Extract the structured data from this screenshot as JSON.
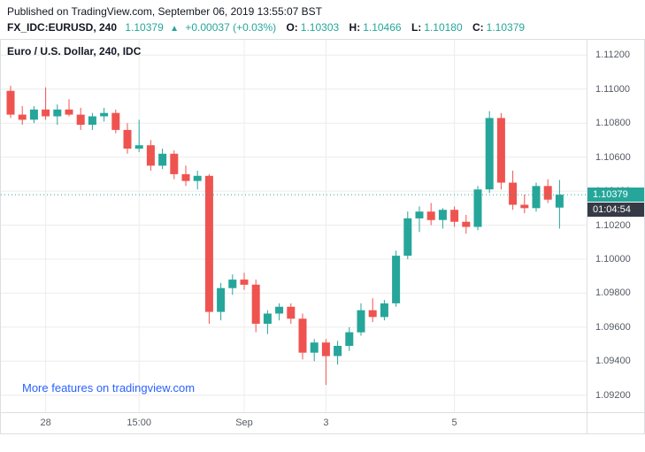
{
  "header": {
    "published_line": "Published on TradingView.com, September 06, 2019 13:55:07 BST",
    "symbol_interval": "FX_IDC:EURUSD, 240",
    "last_price": "1.10379",
    "change_arrow": "▲",
    "change_text": "+0.00037 (+0.03%)",
    "ohlc": [
      {
        "label": "O:",
        "value": "1.10303"
      },
      {
        "label": "H:",
        "value": "1.10466"
      },
      {
        "label": "L:",
        "value": "1.10180"
      },
      {
        "label": "C:",
        "value": "1.10379"
      }
    ]
  },
  "chart": {
    "pane_title": "Euro / U.S. Dollar, 240, IDC",
    "promo_link": "More features on tradingview.com",
    "price_badge": "1.10379",
    "countdown_badge": "01:04:54"
  },
  "colors": {
    "up": "#26a69a",
    "down": "#ef5350",
    "link": "#2962ff",
    "countdown_bg": "#363a45",
    "grid": "#ececec",
    "axis_text": "#555a64",
    "border": "#dcdee1"
  },
  "chart_data": {
    "type": "candlestick",
    "title": "Euro / U.S. Dollar, 240, IDC",
    "symbol": "FX_IDC:EURUSD",
    "interval": "240",
    "last_price": 1.10379,
    "ylim": [
      1.091,
      1.1129
    ],
    "y_ticks": [
      "1.11200",
      "1.11000",
      "1.10800",
      "1.10600",
      "1.10400",
      "1.10200",
      "1.10000",
      "1.09800",
      "1.09600",
      "1.09400",
      "1.09200"
    ],
    "x_ticks": [
      {
        "label": "28",
        "index": 3
      },
      {
        "label": "15:00",
        "index": 11
      },
      {
        "label": "Sep",
        "index": 20
      },
      {
        "label": "3",
        "index": 27
      },
      {
        "label": "5",
        "index": 38
      }
    ],
    "candles_ohlc": [
      [
        1.1099,
        1.1102,
        1.1083,
        1.1085
      ],
      [
        1.1085,
        1.109,
        1.1079,
        1.1082
      ],
      [
        1.1082,
        1.109,
        1.108,
        1.1088
      ],
      [
        1.1088,
        1.1101,
        1.1082,
        1.1084
      ],
      [
        1.1084,
        1.1091,
        1.1079,
        1.1088
      ],
      [
        1.1088,
        1.1094,
        1.1084,
        1.1085
      ],
      [
        1.1085,
        1.1089,
        1.1076,
        1.1079
      ],
      [
        1.1079,
        1.1086,
        1.1076,
        1.1084
      ],
      [
        1.1084,
        1.1089,
        1.1081,
        1.1086
      ],
      [
        1.1086,
        1.1088,
        1.1074,
        1.1076
      ],
      [
        1.1076,
        1.108,
        1.1062,
        1.1065
      ],
      [
        1.1065,
        1.1082,
        1.1063,
        1.1067
      ],
      [
        1.1067,
        1.107,
        1.1052,
        1.1055
      ],
      [
        1.1055,
        1.1065,
        1.1053,
        1.1062
      ],
      [
        1.1062,
        1.1064,
        1.1047,
        1.105
      ],
      [
        1.105,
        1.1055,
        1.1043,
        1.1046
      ],
      [
        1.1046,
        1.1052,
        1.1041,
        1.1049
      ],
      [
        1.1049,
        1.105,
        1.0962,
        1.0969
      ],
      [
        1.0969,
        1.0986,
        1.0964,
        1.0983
      ],
      [
        1.0983,
        1.0991,
        1.0979,
        1.0988
      ],
      [
        1.0988,
        1.0992,
        1.0982,
        1.0985
      ],
      [
        1.0985,
        1.0988,
        1.0957,
        1.0962
      ],
      [
        1.0962,
        1.097,
        1.0956,
        1.0968
      ],
      [
        1.0968,
        1.0974,
        1.0964,
        1.0972
      ],
      [
        1.0972,
        1.0974,
        1.0962,
        1.0965
      ],
      [
        1.0965,
        1.0968,
        1.0941,
        1.0945
      ],
      [
        1.0945,
        1.0953,
        1.094,
        1.0951
      ],
      [
        1.0951,
        1.0953,
        1.0926,
        1.0943
      ],
      [
        1.0943,
        1.0952,
        1.0938,
        1.0949
      ],
      [
        1.0949,
        1.096,
        1.0946,
        1.0957
      ],
      [
        1.0957,
        1.0974,
        1.0955,
        1.097
      ],
      [
        1.097,
        1.0977,
        1.0963,
        1.0966
      ],
      [
        1.0966,
        1.0976,
        1.0964,
        1.0974
      ],
      [
        1.0974,
        1.1005,
        1.0972,
        1.1002
      ],
      [
        1.1002,
        1.1028,
        1.1,
        1.1024
      ],
      [
        1.1024,
        1.1031,
        1.1016,
        1.1028
      ],
      [
        1.1028,
        1.1033,
        1.102,
        1.1023
      ],
      [
        1.1023,
        1.103,
        1.1018,
        1.1029
      ],
      [
        1.1029,
        1.1031,
        1.1019,
        1.1022
      ],
      [
        1.1022,
        1.1026,
        1.1015,
        1.1019
      ],
      [
        1.1019,
        1.1043,
        1.1017,
        1.1041
      ],
      [
        1.1041,
        1.1087,
        1.1039,
        1.1083
      ],
      [
        1.1083,
        1.1086,
        1.1041,
        1.1045
      ],
      [
        1.1045,
        1.1052,
        1.1029,
        1.1032
      ],
      [
        1.1032,
        1.1038,
        1.1027,
        1.103
      ],
      [
        1.103,
        1.1045,
        1.1028,
        1.1043
      ],
      [
        1.1043,
        1.1047,
        1.1033,
        1.1035
      ],
      [
        1.10303,
        1.10466,
        1.1018,
        1.10379
      ]
    ]
  }
}
